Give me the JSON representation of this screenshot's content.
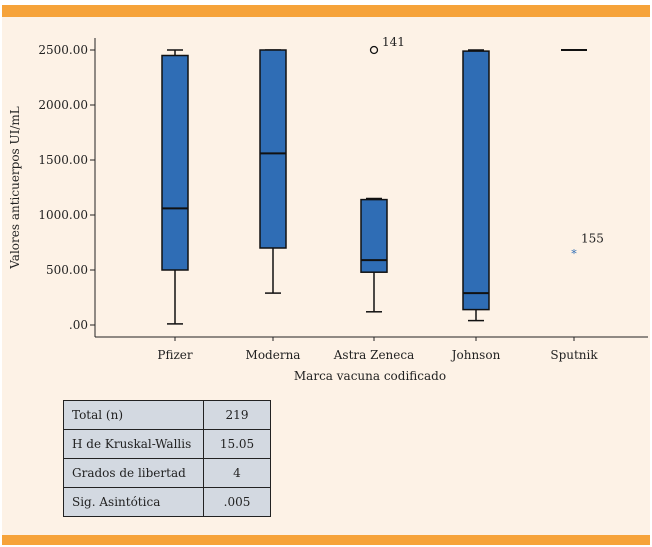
{
  "chart_data": {
    "type": "boxplot",
    "xlabel": "Marca vacuna codificado",
    "ylabel": "Valores anticuerpos UI/mL",
    "ylim": [
      0,
      2500
    ],
    "yticks": [
      0,
      500,
      1000,
      1500,
      2000,
      2500
    ],
    "ytick_labels": [
      ".00",
      "500.00",
      "1000.00",
      "1500.00",
      "2000.00",
      "2500.00"
    ],
    "categories": [
      "Pfizer",
      "Moderna",
      "Astra Zeneca",
      "Johnson",
      "Sputnik"
    ],
    "boxes": [
      {
        "name": "Pfizer",
        "min": 10,
        "q1": 500,
        "median": 1060,
        "q3": 2450,
        "max": 2500,
        "box": true
      },
      {
        "name": "Moderna",
        "min": 290,
        "q1": 700,
        "median": 1560,
        "q3": 2500,
        "max": 2500,
        "box": true
      },
      {
        "name": "Astra Zeneca",
        "min": 120,
        "q1": 480,
        "median": 590,
        "q3": 1140,
        "max": 1150,
        "box": true
      },
      {
        "name": "Johnson",
        "min": 40,
        "q1": 140,
        "median": 290,
        "q3": 2490,
        "max": 2500,
        "box": true
      },
      {
        "name": "Sputnik",
        "median": 2500,
        "box": false
      }
    ],
    "outliers": [
      {
        "category": "Astra Zeneca",
        "value": 2500,
        "label": "141",
        "marker": "circle"
      },
      {
        "category": "Sputnik",
        "value": 650,
        "label": "155",
        "marker": "star"
      }
    ]
  },
  "stats_table": [
    {
      "label": "Total (n)",
      "value": "219"
    },
    {
      "label": "H de Kruskal-Wallis",
      "value": "15.05"
    },
    {
      "label": "Grados de libertad",
      "value": "4"
    },
    {
      "label": "Sig. Asintótica",
      "value": ".005"
    }
  ],
  "colors": {
    "accent": "#F6A33A",
    "panel": "#FDF2E6",
    "box_fill": "#2F6DB5",
    "table_fill": "#D3D9E1"
  }
}
